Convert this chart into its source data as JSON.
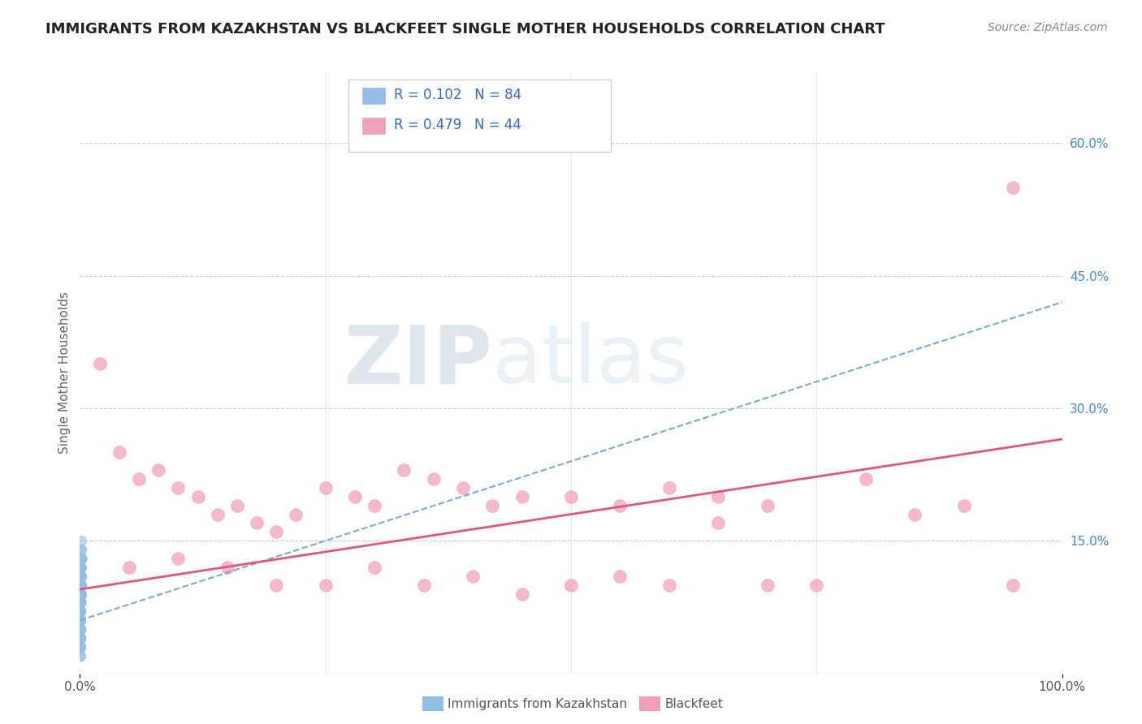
{
  "title": "IMMIGRANTS FROM KAZAKHSTAN VS BLACKFEET SINGLE MOTHER HOUSEHOLDS CORRELATION CHART",
  "source": "Source: ZipAtlas.com",
  "ylabel": "Single Mother Households",
  "xlabel": "",
  "xlim": [
    0.0,
    1.0
  ],
  "ylim": [
    0.0,
    0.68
  ],
  "yticks": [
    0.0,
    0.15,
    0.3,
    0.45,
    0.6
  ],
  "ytick_labels": [
    "",
    "15.0%",
    "30.0%",
    "45.0%",
    "60.0%"
  ],
  "legend_label1": "Immigrants from Kazakhstan",
  "legend_label2": "Blackfeet",
  "R1": 0.102,
  "N1": 84,
  "R2": 0.479,
  "N2": 44,
  "blue_color": "#92bee8",
  "pink_color": "#f0a0b8",
  "blue_line_color": "#7aaad0",
  "pink_line_color": "#e05878",
  "watermark_zip": "ZIP",
  "watermark_atlas": "atlas",
  "background_color": "#ffffff",
  "grid_color": "#cccccc",
  "title_fontsize": 13,
  "axis_label_fontsize": 11,
  "tick_fontsize": 11,
  "blue_line_x0": 0.0,
  "blue_line_y0": 0.06,
  "blue_line_x1": 1.0,
  "blue_line_y1": 0.42,
  "pink_line_x0": 0.0,
  "pink_line_y0": 0.095,
  "pink_line_x1": 1.0,
  "pink_line_y1": 0.265,
  "blue_scatter_x": [
    0.0005,
    0.001,
    0.0008,
    0.002,
    0.001,
    0.0003,
    0.0006,
    0.0015,
    0.001,
    0.0008,
    0.0002,
    0.0004,
    0.0007,
    0.0009,
    0.0012,
    0.0003,
    0.0005,
    0.0008,
    0.001,
    0.0004,
    0.0006,
    0.0009,
    0.001,
    0.0003,
    0.0005,
    0.0008,
    0.0012,
    0.001,
    0.0006,
    0.0004,
    0.0002,
    0.0007,
    0.001,
    0.0005,
    0.0009,
    0.0003,
    0.0006,
    0.001,
    0.0008,
    0.0004,
    0.0002,
    0.0005,
    0.0007,
    0.0009,
    0.001,
    0.0004,
    0.0006,
    0.0008,
    0.0012,
    0.0003,
    0.0001,
    0.0004,
    0.0006,
    0.0009,
    0.0011,
    0.0003,
    0.0005,
    0.0008,
    0.001,
    0.0002,
    0.0004,
    0.0006,
    0.0009,
    0.0001,
    0.0003,
    0.0005,
    0.0007,
    0.001,
    0.0002,
    0.0004,
    0.0006,
    0.0008,
    0.0011,
    0.0003,
    0.0005,
    0.0008,
    0.0002,
    0.0004,
    0.0007,
    0.0009,
    0.0001,
    0.0003,
    0.0006,
    0.0008
  ],
  "blue_scatter_y": [
    0.12,
    0.14,
    0.1,
    0.13,
    0.15,
    0.09,
    0.11,
    0.13,
    0.1,
    0.12,
    0.08,
    0.1,
    0.12,
    0.09,
    0.11,
    0.07,
    0.09,
    0.11,
    0.13,
    0.08,
    0.1,
    0.12,
    0.14,
    0.07,
    0.09,
    0.11,
    0.13,
    0.1,
    0.08,
    0.06,
    0.05,
    0.07,
    0.09,
    0.06,
    0.08,
    0.05,
    0.07,
    0.09,
    0.11,
    0.06,
    0.04,
    0.06,
    0.08,
    0.1,
    0.12,
    0.05,
    0.07,
    0.09,
    0.11,
    0.04,
    0.03,
    0.05,
    0.07,
    0.09,
    0.11,
    0.04,
    0.06,
    0.08,
    0.1,
    0.03,
    0.05,
    0.07,
    0.09,
    0.02,
    0.04,
    0.06,
    0.08,
    0.1,
    0.03,
    0.05,
    0.07,
    0.09,
    0.11,
    0.04,
    0.06,
    0.08,
    0.03,
    0.05,
    0.07,
    0.09,
    0.02,
    0.04,
    0.06,
    0.08
  ],
  "pink_scatter_x": [
    0.02,
    0.04,
    0.06,
    0.08,
    0.1,
    0.12,
    0.14,
    0.16,
    0.18,
    0.2,
    0.22,
    0.25,
    0.28,
    0.3,
    0.33,
    0.36,
    0.39,
    0.42,
    0.45,
    0.5,
    0.55,
    0.6,
    0.65,
    0.7,
    0.75,
    0.8,
    0.85,
    0.9,
    0.95,
    0.05,
    0.1,
    0.15,
    0.2,
    0.25,
    0.3,
    0.35,
    0.4,
    0.45,
    0.5,
    0.55,
    0.6,
    0.65,
    0.7,
    0.95
  ],
  "pink_scatter_y": [
    0.35,
    0.25,
    0.22,
    0.23,
    0.21,
    0.2,
    0.18,
    0.19,
    0.17,
    0.16,
    0.18,
    0.21,
    0.2,
    0.19,
    0.23,
    0.22,
    0.21,
    0.19,
    0.2,
    0.2,
    0.19,
    0.21,
    0.2,
    0.19,
    0.1,
    0.22,
    0.18,
    0.19,
    0.1,
    0.12,
    0.13,
    0.12,
    0.1,
    0.1,
    0.12,
    0.1,
    0.11,
    0.09,
    0.1,
    0.11,
    0.1,
    0.17,
    0.1,
    0.55
  ]
}
